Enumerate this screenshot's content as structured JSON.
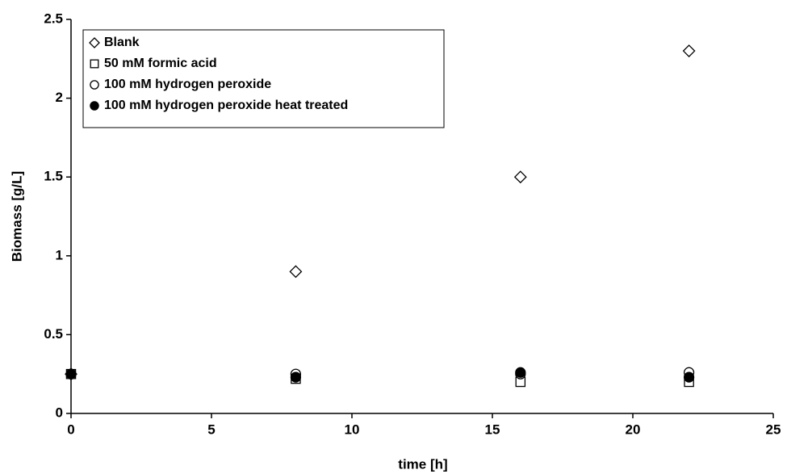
{
  "chart_data": {
    "type": "scatter",
    "x_label": "time [h]",
    "y_label": "Biomass [g/L]",
    "x": [
      0,
      8,
      16,
      22
    ],
    "series": [
      {
        "name": "Blank",
        "marker": "diamond",
        "color": "#000000",
        "fill": "#ffffff",
        "values": [
          0.25,
          0.9,
          1.5,
          2.3
        ]
      },
      {
        "name": "50 mM formic acid",
        "marker": "square",
        "color": "#000000",
        "fill": "#ffffff",
        "values": [
          0.25,
          0.22,
          0.2,
          0.2
        ]
      },
      {
        "name": "100 mM hydrogen peroxide",
        "marker": "circle",
        "color": "#000000",
        "fill": "#ffffff",
        "values": [
          0.25,
          0.25,
          0.25,
          0.26
        ]
      },
      {
        "name": "100 mM hydrogen peroxide heat treated",
        "marker": "circle",
        "color": "#000000",
        "fill": "#000000",
        "values": [
          0.25,
          0.23,
          0.26,
          0.23
        ]
      }
    ],
    "xlim": [
      0,
      25
    ],
    "xticks": [
      0,
      5,
      10,
      15,
      20,
      25
    ],
    "ylim": [
      0,
      2.5
    ],
    "yticks": [
      0,
      0.5,
      1,
      1.5,
      2,
      2.5
    ],
    "grid": false,
    "legend": "upper left"
  }
}
